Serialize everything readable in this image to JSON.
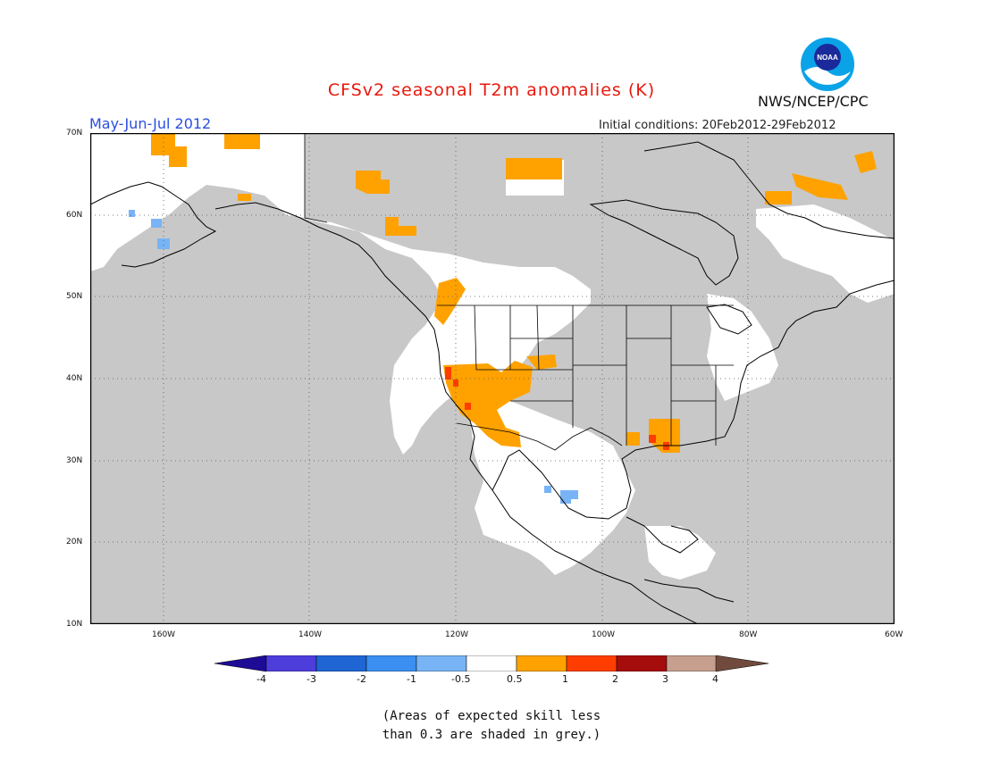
{
  "title": "CFSv2 seasonal T2m anomalies (K)",
  "period": "May-Jun-Jul 2012",
  "initial_conditions": "Initial conditions: 20Feb2012-29Feb2012",
  "agency": "NWS/NCEP/CPC",
  "logo_text": "NOAA",
  "map": {
    "lon_range": [
      -170,
      -60
    ],
    "lat_range": [
      10,
      70
    ],
    "lat_ticks": [
      "70N",
      "60N",
      "50N",
      "40N",
      "30N",
      "20N",
      "10N"
    ],
    "lon_ticks": [
      "160W",
      "140W",
      "120W",
      "100W",
      "80W",
      "60W"
    ],
    "grid": "dotted",
    "colors": {
      "background": "#c8c8c8",
      "neutral": "#ffffff",
      "warm_0_5_1": "#ffa200",
      "warm_1_2": "#ff3d00",
      "cool_-1_-0_5": "#78b4f5"
    }
  },
  "colorbar": {
    "labels": [
      "-4",
      "-3",
      "-2",
      "-1",
      "-0.5",
      "0.5",
      "1",
      "2",
      "3",
      "4"
    ],
    "colors": [
      "#1e0b96",
      "#4d3ddb",
      "#1f65d4",
      "#3b8ff0",
      "#78b4f5",
      "#ffffff",
      "#ffa200",
      "#ff3d00",
      "#a50d0d",
      "#c69f8f",
      "#704b3d"
    ]
  },
  "note": [
    "(Areas of expected skill less",
    "than 0.3 are shaded in grey.)"
  ]
}
